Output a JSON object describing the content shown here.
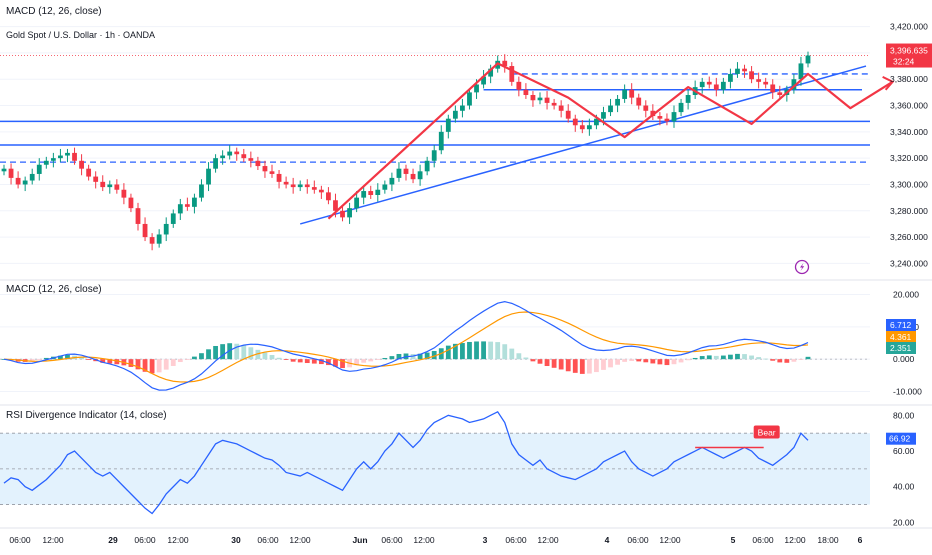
{
  "header": {
    "indicator_title": "MACD (12, 26, close)",
    "symbol": "Gold Spot / U.S. Dollar · 1h · OANDA"
  },
  "colors": {
    "up": "#089981",
    "down": "#f23645",
    "trend": "#2962ff",
    "macd_line": "#2962ff",
    "signal_line": "#ff9800",
    "hist_up_strong": "#26a69a",
    "hist_up_weak": "#b2dfdb",
    "hist_down_strong": "#ff5252",
    "hist_down_weak": "#ffcdd2",
    "rsi_line": "#2962ff",
    "rsi_band": "#e3f2fd",
    "annotation": "#f23645"
  },
  "chart_data": [
    {
      "type": "candlestick",
      "title": "Gold Spot / U.S. Dollar · 1h · OANDA",
      "y_ticks": [
        "3,420.000",
        "3,400.000",
        "3,380.000",
        "3,360.000",
        "3,340.000",
        "3,320.000",
        "3,300.000",
        "3,280.000",
        "3,260.000",
        "3,240.000"
      ],
      "ylim": [
        3235,
        3425
      ],
      "last_price": "3,396.635",
      "countdown": "32:24",
      "x_ticks": [
        "06:00",
        "12:00",
        "29",
        "06:00",
        "12:00",
        "30",
        "06:00",
        "12:00",
        "Jun",
        "06:00",
        "12:00",
        "3",
        "06:00",
        "12:00",
        "4",
        "06:00",
        "12:00",
        "5",
        "06:00",
        "12:00",
        "18:00",
        "6"
      ],
      "closes": [
        3312,
        3305,
        3300,
        3303,
        3308,
        3315,
        3318,
        3320,
        3322,
        3324,
        3318,
        3312,
        3306,
        3302,
        3298,
        3300,
        3296,
        3290,
        3282,
        3270,
        3260,
        3255,
        3262,
        3270,
        3278,
        3285,
        3283,
        3290,
        3300,
        3312,
        3320,
        3322,
        3325,
        3323,
        3320,
        3318,
        3314,
        3310,
        3308,
        3302,
        3300,
        3298,
        3300,
        3298,
        3296,
        3294,
        3288,
        3280,
        3275,
        3282,
        3290,
        3295,
        3292,
        3296,
        3300,
        3305,
        3312,
        3308,
        3304,
        3310,
        3318,
        3326,
        3340,
        3350,
        3356,
        3360,
        3370,
        3376,
        3382,
        3388,
        3394,
        3390,
        3378,
        3372,
        3368,
        3364,
        3366,
        3362,
        3360,
        3356,
        3350,
        3345,
        3342,
        3345,
        3350,
        3355,
        3360,
        3365,
        3372,
        3366,
        3360,
        3356,
        3352,
        3350,
        3348,
        3355,
        3362,
        3368,
        3374,
        3378,
        3376,
        3372,
        3378,
        3384,
        3388,
        3386,
        3380,
        3378,
        3376,
        3370,
        3368,
        3372,
        3380,
        3392,
        3398
      ],
      "support_lines": [
        3348,
        3330
      ],
      "dashed_levels": [
        3384,
        3317
      ],
      "resistance_line": 3372,
      "trendline": [
        [
          42,
          3270
        ],
        [
          114,
          3382
        ]
      ]
    },
    {
      "type": "bar+line",
      "title": "MACD (12, 26, close)",
      "y_ticks": [
        "20.000",
        "10.000",
        "0.000",
        "-10.000"
      ],
      "ylim": [
        -12,
        22
      ],
      "value_labels": [
        "6.712",
        "4.361",
        "2.351"
      ]
    },
    {
      "type": "line",
      "title": "RSI Divergence Indicator (14, close)",
      "y_ticks": [
        "80.00",
        "60.00",
        "40.00",
        "20.00"
      ],
      "ylim": [
        18,
        83
      ],
      "band": [
        30,
        70
      ],
      "midline": 50,
      "last_value": "66.92",
      "annotation": "Bear",
      "values": [
        42,
        45,
        44,
        40,
        38,
        41,
        44,
        48,
        52,
        58,
        60,
        56,
        52,
        48,
        46,
        48,
        44,
        40,
        36,
        32,
        28,
        25,
        30,
        36,
        40,
        44,
        42,
        46,
        52,
        58,
        64,
        66,
        65,
        64,
        62,
        60,
        58,
        56,
        55,
        52,
        48,
        47,
        46,
        48,
        46,
        44,
        42,
        40,
        38,
        44,
        50,
        54,
        50,
        54,
        60,
        64,
        70,
        66,
        62,
        66,
        72,
        76,
        78,
        80,
        79,
        78,
        76,
        77,
        78,
        80,
        82,
        76,
        64,
        58,
        55,
        52,
        55,
        50,
        48,
        46,
        45,
        44,
        46,
        48,
        50,
        54,
        56,
        58,
        60,
        54,
        50,
        48,
        46,
        48,
        50,
        54,
        56,
        58,
        60,
        62,
        60,
        58,
        56,
        58,
        60,
        62,
        60,
        56,
        54,
        52,
        55,
        58,
        62,
        70,
        66
      ]
    }
  ]
}
